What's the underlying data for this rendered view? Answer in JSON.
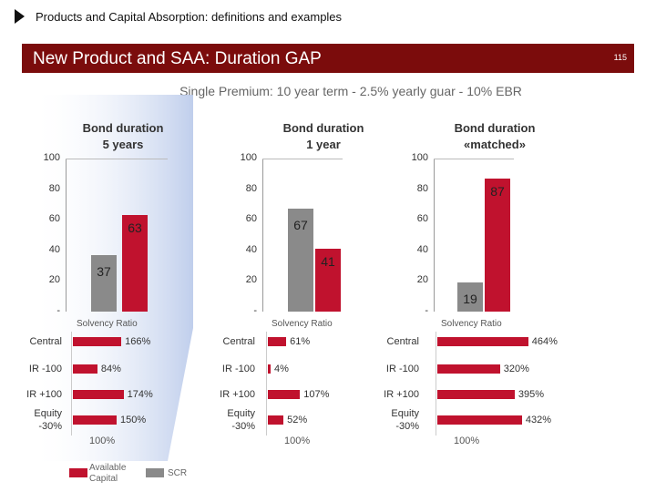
{
  "header": {
    "section_title": "Products and Capital Absorption: definitions and examples",
    "banner_title": "New Product and SAA: Duration GAP",
    "page_number": "115"
  },
  "chart_subtitle": "Single Premium: 10 year term - 2.5% yearly guar - 10% EBR",
  "colors": {
    "available_capital": "#c0122e",
    "scr": "#8a8a8a",
    "banner": "#7b0c0c"
  },
  "legend": {
    "available_capital": "Available Capital",
    "scr": "SCR"
  },
  "chart_data": [
    {
      "type": "bar",
      "title": "Bond duration 5 years",
      "title_lines": [
        "Bond duration",
        "5 years"
      ],
      "y_ticks": [
        "100",
        "80",
        "60",
        "40",
        "20",
        "-"
      ],
      "ylim": [
        0,
        100
      ],
      "series": [
        {
          "name": "SCR",
          "value": 37,
          "label": "37"
        },
        {
          "name": "Available Capital",
          "value": 63,
          "label": "63"
        }
      ],
      "solvency": {
        "title": "Solvency Ratio",
        "scenarios": [
          {
            "name": "Central",
            "value": 166,
            "label": "166%"
          },
          {
            "name": "IR -100",
            "value": 84,
            "label": "84%"
          },
          {
            "name": "IR +100",
            "value": 174,
            "label": "174%"
          },
          {
            "name": "Equity -30%",
            "line1": "Equity",
            "line2": "-30%",
            "value": 150,
            "label": "150%"
          }
        ],
        "reference": "100%"
      }
    },
    {
      "type": "bar",
      "title": "Bond duration 1 year",
      "title_lines": [
        "Bond duration",
        "1 year"
      ],
      "y_ticks": [
        "100",
        "80",
        "60",
        "40",
        "20",
        "-"
      ],
      "ylim": [
        0,
        100
      ],
      "series": [
        {
          "name": "SCR",
          "value": 67,
          "label": "67"
        },
        {
          "name": "Available Capital",
          "value": 41,
          "label": "41"
        }
      ],
      "solvency": {
        "title": "Solvency Ratio",
        "scenarios": [
          {
            "name": "Central",
            "value": 61,
            "label": "61%"
          },
          {
            "name": "IR -100",
            "value": 4,
            "label": "4%"
          },
          {
            "name": "IR +100",
            "value": 107,
            "label": "107%"
          },
          {
            "name": "Equity -30%",
            "line1": "Equity",
            "line2": "-30%",
            "value": 52,
            "label": "52%"
          }
        ],
        "reference": "100%"
      }
    },
    {
      "type": "bar",
      "title": "Bond duration «matched»",
      "title_lines": [
        "Bond duration",
        "«matched»"
      ],
      "y_ticks": [
        "100",
        "80",
        "60",
        "40",
        "20",
        "-"
      ],
      "ylim": [
        0,
        100
      ],
      "series": [
        {
          "name": "SCR",
          "value": 19,
          "label": "19"
        },
        {
          "name": "Available Capital",
          "value": 87,
          "label": "87"
        }
      ],
      "solvency": {
        "title": "Solvency Ratio",
        "scenarios": [
          {
            "name": "Central",
            "value": 464,
            "label": "464%"
          },
          {
            "name": "IR -100",
            "value": 320,
            "label": "320%"
          },
          {
            "name": "IR +100",
            "value": 395,
            "label": "395%"
          },
          {
            "name": "Equity -30%",
            "line1": "Equity",
            "line2": "-30%",
            "value": 432,
            "label": "432%"
          }
        ],
        "reference": "100%"
      }
    }
  ]
}
